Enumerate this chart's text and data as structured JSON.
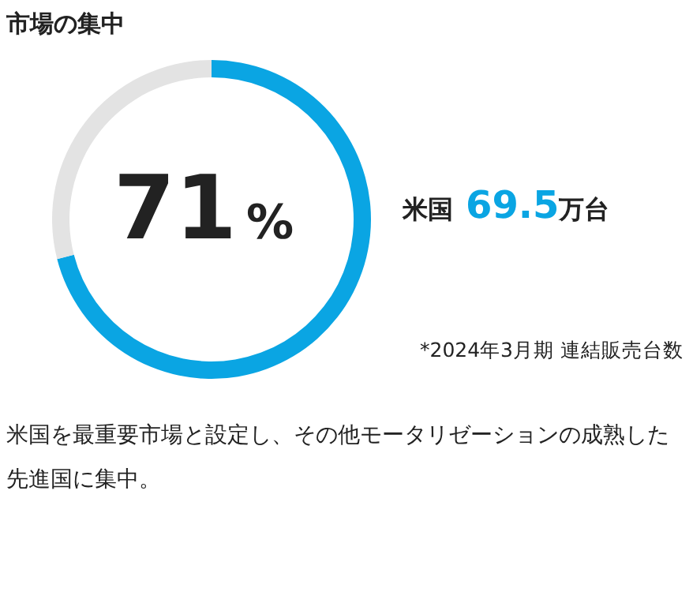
{
  "chart_data": {
    "type": "donut",
    "title": "市場の集中",
    "categories": [
      null,
      null
    ],
    "values": [
      71,
      29
    ],
    "colors": [
      "#0aa5e3",
      "#e3e3e3"
    ],
    "annotations": [
      "71%",
      "米国 69.5万台",
      "*2024年3月期 連結販売台数",
      "米国を最重要市場と設定し、その他モータリゼーションの成熟した先進国に集中。"
    ]
  }
}
